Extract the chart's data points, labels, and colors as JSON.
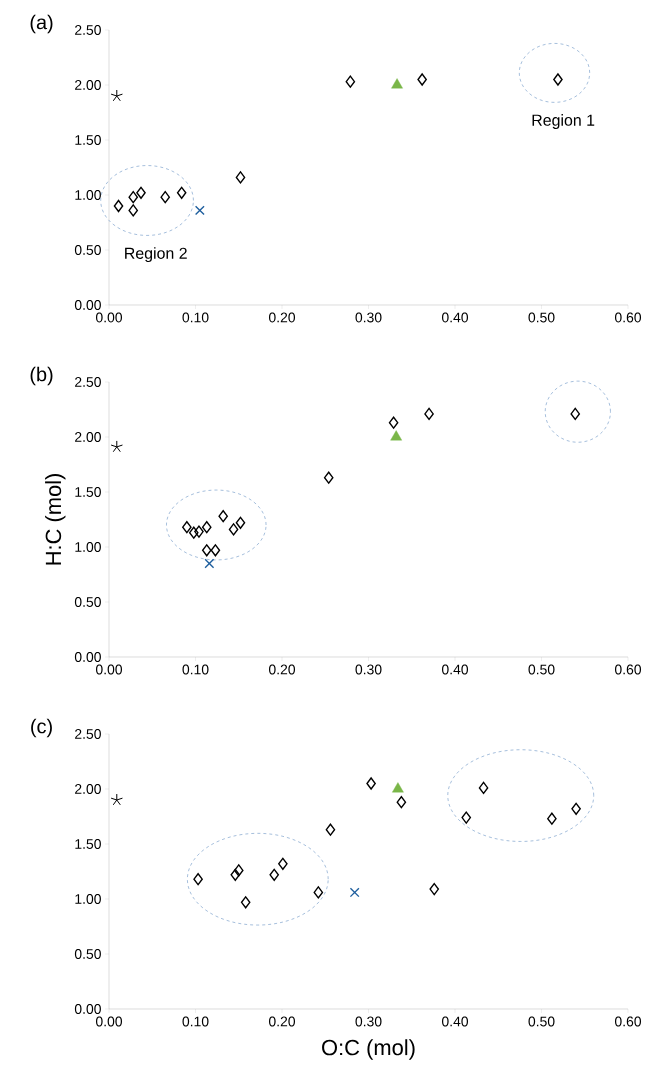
{
  "chart_data": [
    {
      "type": "scatter",
      "title": "(a)",
      "xlim": [
        0,
        0.6
      ],
      "ylim": [
        0,
        2.5
      ],
      "xticks": [
        {
          "value": 0,
          "label": "0.00"
        },
        {
          "value": 0.1,
          "label": "0.10"
        },
        {
          "value": 0.2,
          "label": "0.20"
        },
        {
          "value": 0.3,
          "label": "0.30"
        },
        {
          "value": 0.4,
          "label": "0.40"
        },
        {
          "value": 0.5,
          "label": "0.50"
        },
        {
          "value": 0.6,
          "label": "0.60"
        }
      ],
      "yticks": [
        {
          "value": 0,
          "label": "0.00"
        },
        {
          "value": 0.5,
          "label": "0.50"
        },
        {
          "value": 1,
          "label": "1.00"
        },
        {
          "value": 1.5,
          "label": "1.50"
        },
        {
          "value": 2,
          "label": "2.00"
        },
        {
          "value": 2.5,
          "label": "2.50"
        }
      ],
      "series": [
        {
          "marker": "diamond",
          "color": "#000000",
          "x": [
            0.279,
            0.362,
            0.519,
            0.152,
            0.011,
            0.028,
            0.028,
            0.037,
            0.065,
            0.084
          ],
          "values": [
            2.03,
            2.05,
            2.05,
            1.16,
            0.9,
            0.86,
            0.98,
            1.02,
            0.98,
            1.02
          ]
        },
        {
          "marker": "cross",
          "color": "#000000",
          "x": [
            0.009
          ],
          "values": [
            1.9
          ]
        },
        {
          "marker": "triangle",
          "color": "#7ab648",
          "x": [
            0.333
          ],
          "values": [
            2.0
          ]
        },
        {
          "marker": "cross",
          "color": "#1f5f9e",
          "x": [
            0.105
          ],
          "values": [
            0.86
          ]
        }
      ],
      "annotations": [
        "Region 1",
        "Region 2"
      ]
    },
    {
      "type": "scatter",
      "title": "(b)",
      "ylabel": "H:C (mol)",
      "xlim": [
        0,
        0.6
      ],
      "ylim": [
        0,
        2.5
      ],
      "xticks": [
        {
          "value": 0,
          "label": "0.00"
        },
        {
          "value": 0.1,
          "label": "0.10"
        },
        {
          "value": 0.2,
          "label": "0.20"
        },
        {
          "value": 0.3,
          "label": "0.30"
        },
        {
          "value": 0.4,
          "label": "0.40"
        },
        {
          "value": 0.5,
          "label": "0.50"
        },
        {
          "value": 0.6,
          "label": "0.60"
        }
      ],
      "yticks": [
        {
          "value": 0,
          "label": "0.00"
        },
        {
          "value": 0.5,
          "label": "0.50"
        },
        {
          "value": 1,
          "label": "1.00"
        },
        {
          "value": 1.5,
          "label": "1.50"
        },
        {
          "value": 2,
          "label": "2.00"
        },
        {
          "value": 2.5,
          "label": "2.50"
        }
      ],
      "series": [
        {
          "marker": "diamond",
          "color": "#000000",
          "x": [
            0.329,
            0.37,
            0.539,
            0.254,
            0.09,
            0.098,
            0.104,
            0.113,
            0.132,
            0.144,
            0.152,
            0.113,
            0.123
          ],
          "values": [
            2.13,
            2.21,
            2.21,
            1.63,
            1.18,
            1.13,
            1.14,
            1.18,
            1.28,
            1.16,
            1.22,
            0.97,
            0.97
          ]
        },
        {
          "marker": "cross",
          "color": "#000000",
          "x": [
            0.009
          ],
          "values": [
            1.91
          ]
        },
        {
          "marker": "triangle",
          "color": "#7ab648",
          "x": [
            0.332
          ],
          "values": [
            2.0
          ]
        },
        {
          "marker": "cross",
          "color": "#1f5f9e",
          "x": [
            0.116
          ],
          "values": [
            0.85
          ]
        }
      ]
    },
    {
      "type": "scatter",
      "title": "(c)",
      "xlabel": "O:C (mol)",
      "xlim": [
        0,
        0.6
      ],
      "ylim": [
        0,
        2.5
      ],
      "xticks": [
        {
          "value": 0,
          "label": "0.00"
        },
        {
          "value": 0.1,
          "label": "0.10"
        },
        {
          "value": 0.2,
          "label": "0.20"
        },
        {
          "value": 0.3,
          "label": "0.30"
        },
        {
          "value": 0.4,
          "label": "0.40"
        },
        {
          "value": 0.5,
          "label": "0.50"
        },
        {
          "value": 0.6,
          "label": "0.60"
        }
      ],
      "yticks": [
        {
          "value": 0,
          "label": "0.00"
        },
        {
          "value": 0.5,
          "label": "0.50"
        },
        {
          "value": 1,
          "label": "1.00"
        },
        {
          "value": 1.5,
          "label": "1.50"
        },
        {
          "value": 2,
          "label": "2.00"
        },
        {
          "value": 2.5,
          "label": "2.50"
        }
      ],
      "series": [
        {
          "marker": "diamond",
          "color": "#000000",
          "x": [
            0.303,
            0.338,
            0.256,
            0.376,
            0.413,
            0.433,
            0.512,
            0.54,
            0.103,
            0.146,
            0.15,
            0.158,
            0.191,
            0.201,
            0.242
          ],
          "values": [
            2.05,
            1.88,
            1.63,
            1.09,
            1.74,
            2.01,
            1.73,
            1.82,
            1.18,
            1.22,
            1.26,
            0.97,
            1.22,
            1.32,
            1.06
          ]
        },
        {
          "marker": "cross",
          "color": "#000000",
          "x": [
            0.009
          ],
          "values": [
            1.9
          ]
        },
        {
          "marker": "triangle",
          "color": "#7ab648",
          "x": [
            0.334
          ],
          "values": [
            2.0
          ]
        },
        {
          "marker": "cross",
          "color": "#1f5f9e",
          "x": [
            0.284
          ],
          "values": [
            1.06
          ]
        }
      ]
    }
  ]
}
